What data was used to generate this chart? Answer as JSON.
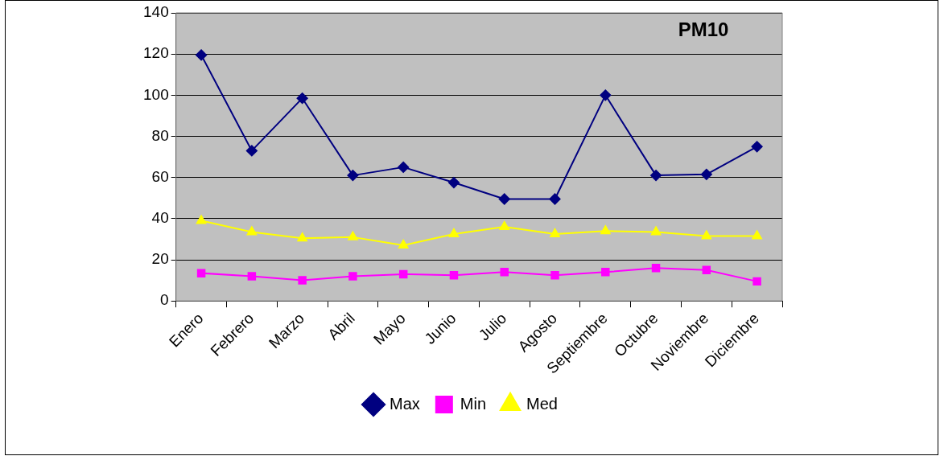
{
  "chart_data": {
    "type": "line",
    "title": "PM10",
    "categories": [
      "Enero",
      "Febrero",
      "Marzo",
      "Abril",
      "Mayo",
      "Junio",
      "Julio",
      "Agosto",
      "Septiembre",
      "Octubre",
      "Noviembre",
      "Diciembre"
    ],
    "series": [
      {
        "name": "Max",
        "color": "#000080",
        "marker": "diamond",
        "values": [
          119.5,
          73,
          98.5,
          61,
          65,
          57.5,
          49.5,
          49.5,
          100,
          61,
          61.5,
          75
        ]
      },
      {
        "name": "Min",
        "color": "#ff00ff",
        "marker": "square",
        "values": [
          13.5,
          12,
          10,
          12,
          13,
          12.5,
          14,
          12.5,
          14,
          16,
          15,
          9.5
        ]
      },
      {
        "name": "Med",
        "color": "#ffff00",
        "marker": "triangle",
        "values": [
          39,
          33.5,
          30.5,
          31,
          27,
          32.5,
          36,
          32.5,
          34,
          33.5,
          31.5,
          31.5
        ]
      }
    ],
    "ylim": [
      0,
      140
    ],
    "yticks": [
      0,
      20,
      40,
      60,
      80,
      100,
      120,
      140
    ],
    "grid": "y",
    "legend": "bottom",
    "line_style": "solid"
  }
}
